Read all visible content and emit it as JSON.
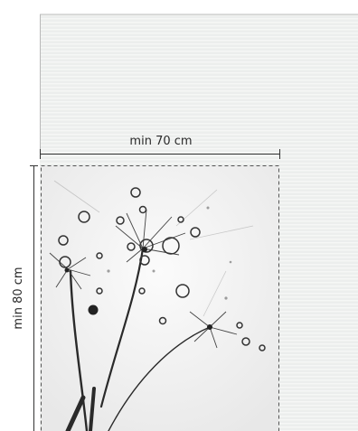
{
  "dimensions": {
    "width_label": "min 70 cm",
    "height_label": "min 80 cm"
  },
  "panel": {
    "style": "horizontal-striped",
    "colors": {
      "base": "#eceeed",
      "stripe": "#f6f7f6",
      "outline": "#9a9a9a"
    }
  },
  "photo": {
    "subject": "dandelion seeds with water droplets",
    "palette": {
      "background": "#f3f3f3",
      "stem": "#2a2a2a",
      "drop": "#3a3a3a"
    }
  },
  "colors": {
    "ruler": "#333333",
    "dashed": "#555555"
  }
}
